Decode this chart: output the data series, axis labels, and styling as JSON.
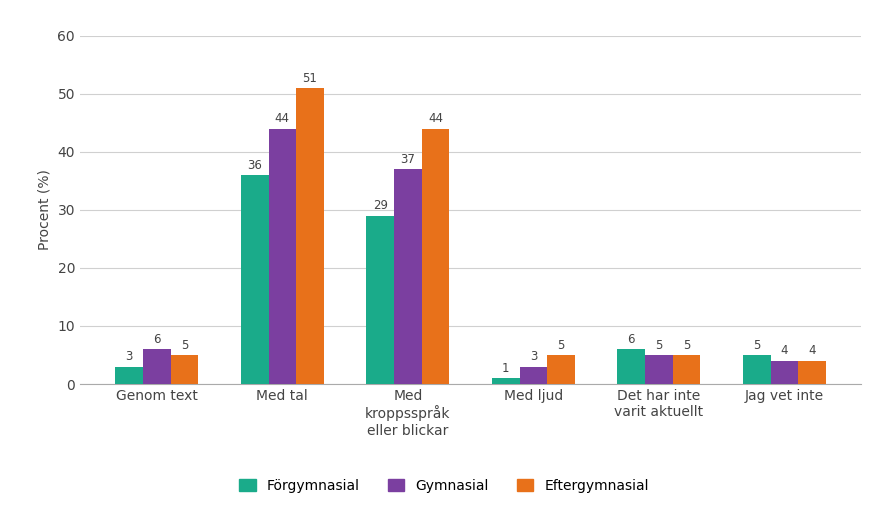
{
  "categories": [
    "Genom text",
    "Med tal",
    "Med\nkroppsspråk\neller blickar",
    "Med ljud",
    "Det har inte\nvarit aktuellt",
    "Jag vet inte"
  ],
  "series": {
    "Förgymnasial": [
      3,
      36,
      29,
      1,
      6,
      5
    ],
    "Gymnasial": [
      6,
      44,
      37,
      3,
      5,
      4
    ],
    "Eftergymnasial": [
      5,
      51,
      44,
      5,
      5,
      4
    ]
  },
  "colors": {
    "Förgymnasial": "#1aab8a",
    "Gymnasial": "#7b3fa0",
    "Eftergymnasial": "#e8711a"
  },
  "ylabel": "Procent (%)",
  "ylim": [
    0,
    60
  ],
  "yticks": [
    0,
    10,
    20,
    30,
    40,
    50,
    60
  ],
  "legend_labels": [
    "Förgymnasial",
    "Gymnasial",
    "Eftergymnasial"
  ],
  "bar_width": 0.22,
  "label_fontsize": 8.5,
  "axis_fontsize": 10,
  "tick_fontsize": 10,
  "legend_fontsize": 10,
  "background_color": "#ffffff"
}
